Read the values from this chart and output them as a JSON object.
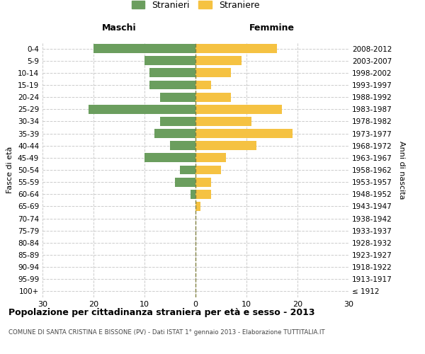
{
  "age_groups": [
    "100+",
    "95-99",
    "90-94",
    "85-89",
    "80-84",
    "75-79",
    "70-74",
    "65-69",
    "60-64",
    "55-59",
    "50-54",
    "45-49",
    "40-44",
    "35-39",
    "30-34",
    "25-29",
    "20-24",
    "15-19",
    "10-14",
    "5-9",
    "0-4"
  ],
  "birth_years": [
    "≤ 1912",
    "1913-1917",
    "1918-1922",
    "1923-1927",
    "1928-1932",
    "1933-1937",
    "1938-1942",
    "1943-1947",
    "1948-1952",
    "1953-1957",
    "1958-1962",
    "1963-1967",
    "1968-1972",
    "1973-1977",
    "1978-1982",
    "1983-1987",
    "1988-1992",
    "1993-1997",
    "1998-2002",
    "2003-2007",
    "2008-2012"
  ],
  "maschi": [
    0,
    0,
    0,
    0,
    0,
    0,
    0,
    0,
    1,
    4,
    3,
    10,
    5,
    8,
    7,
    21,
    7,
    9,
    9,
    10,
    20
  ],
  "femmine": [
    0,
    0,
    0,
    0,
    0,
    0,
    0,
    1,
    3,
    3,
    5,
    6,
    12,
    19,
    11,
    17,
    7,
    3,
    7,
    9,
    16
  ],
  "male_color": "#6b9e5e",
  "female_color": "#f5c242",
  "center_line_color": "#808040",
  "grid_color": "#cccccc",
  "bg_color": "#ffffff",
  "title": "Popolazione per cittadinanza straniera per età e sesso - 2013",
  "subtitle": "COMUNE DI SANTA CRISTINA E BISSONE (PV) - Dati ISTAT 1° gennaio 2013 - Elaborazione TUTTITALIA.IT",
  "xlabel_left": "Maschi",
  "xlabel_right": "Femmine",
  "ylabel_left": "Fasce di età",
  "ylabel_right": "Anni di nascita",
  "legend_stranieri": "Stranieri",
  "legend_straniere": "Straniere",
  "xlim": 30,
  "bar_height": 0.75
}
